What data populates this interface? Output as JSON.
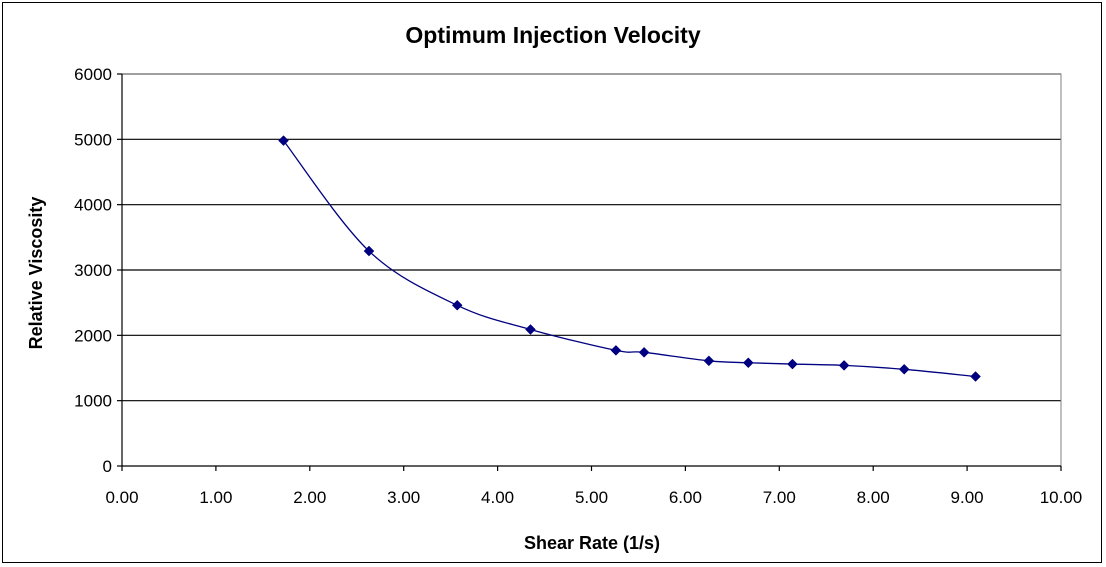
{
  "chart_data": {
    "type": "line",
    "title": "Optimum Injection Velocity",
    "xlabel": "Shear Rate (1/s)",
    "ylabel": "Relative Viscosity",
    "xlim": [
      0,
      10
    ],
    "ylim": [
      0,
      6000
    ],
    "x_ticks": [
      "0.00",
      "1.00",
      "2.00",
      "3.00",
      "4.00",
      "5.00",
      "6.00",
      "7.00",
      "8.00",
      "9.00",
      "10.00"
    ],
    "y_ticks": [
      "0",
      "1000",
      "2000",
      "3000",
      "4000",
      "5000",
      "6000"
    ],
    "grid": "horizontal major gridlines",
    "legend": "none",
    "smooth": true,
    "series": [
      {
        "color": "#000080",
        "marker": "diamond",
        "points": [
          {
            "x": 1.72,
            "y": 4980
          },
          {
            "x": 2.63,
            "y": 3290
          },
          {
            "x": 3.57,
            "y": 2460
          },
          {
            "x": 4.35,
            "y": 2090
          },
          {
            "x": 5.26,
            "y": 1770
          },
          {
            "x": 5.56,
            "y": 1740
          },
          {
            "x": 6.25,
            "y": 1610
          },
          {
            "x": 6.67,
            "y": 1580
          },
          {
            "x": 7.14,
            "y": 1560
          },
          {
            "x": 7.69,
            "y": 1540
          },
          {
            "x": 8.33,
            "y": 1480
          },
          {
            "x": 9.09,
            "y": 1370
          }
        ]
      }
    ]
  },
  "colors": {
    "background": "#ffffff",
    "frame": "#000000",
    "gridline": "#000000",
    "plot_border": "#808080",
    "series": "#000080"
  }
}
